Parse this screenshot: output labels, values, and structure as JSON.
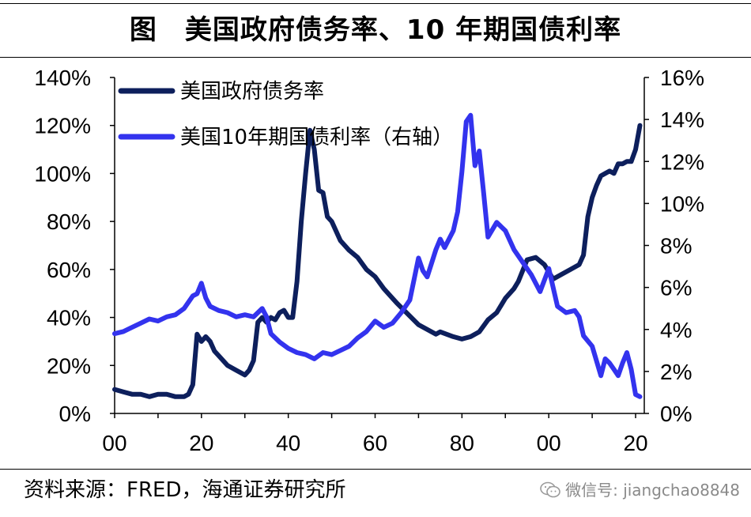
{
  "header": {
    "title": "图　美国政府债务率、10 年期国债利率"
  },
  "footer": {
    "source": "资料来源：FRED，海通证券研究所",
    "watermark": "微信号: jiangchao8848",
    "watermark_icon": "wechat-icon"
  },
  "chart_data": {
    "type": "line",
    "title": "图　美国政府债务率、10 年期国债利率",
    "xlabel": "",
    "ylabel": "",
    "y2label": "",
    "x_tick_labels": [
      "00",
      "20",
      "40",
      "60",
      "80",
      "00",
      "20"
    ],
    "x_tick_years": [
      1900,
      1920,
      1940,
      1960,
      1980,
      2000,
      2020
    ],
    "xlim": [
      1900,
      2022
    ],
    "ylim_left": [
      0,
      140
    ],
    "ylim_right": [
      0,
      16
    ],
    "y_left_ticks": [
      "0%",
      "20%",
      "40%",
      "60%",
      "80%",
      "100%",
      "120%",
      "140%"
    ],
    "y_right_ticks": [
      "0%",
      "2%",
      "4%",
      "6%",
      "8%",
      "10%",
      "12%",
      "14%",
      "16%"
    ],
    "legend_position": "top-left",
    "grid": false,
    "series": [
      {
        "name": "美国政府债务率",
        "axis": "left",
        "color": "#0d1f5c",
        "x": [
          1900,
          1902,
          1904,
          1906,
          1908,
          1910,
          1912,
          1914,
          1916,
          1917,
          1918,
          1919,
          1920,
          1921,
          1922,
          1923,
          1924,
          1926,
          1928,
          1930,
          1931,
          1932,
          1933,
          1934,
          1935,
          1936,
          1937,
          1938,
          1939,
          1940,
          1941,
          1942,
          1943,
          1944,
          1945,
          1946,
          1947,
          1948,
          1949,
          1950,
          1952,
          1954,
          1956,
          1958,
          1960,
          1962,
          1965,
          1970,
          1974,
          1975,
          1978,
          1980,
          1982,
          1984,
          1986,
          1988,
          1990,
          1992,
          1993,
          1995,
          1997,
          1999,
          2001,
          2003,
          2005,
          2007,
          2008,
          2009,
          2010,
          2011,
          2012,
          2013,
          2014,
          2015,
          2016,
          2017,
          2018,
          2019,
          2020,
          2021
        ],
        "values": [
          10,
          9,
          8,
          8,
          7,
          8,
          8,
          7,
          7,
          8,
          12,
          33,
          30,
          32,
          30,
          26,
          24,
          20,
          18,
          16,
          18,
          22,
          38,
          40,
          38,
          40,
          39,
          42,
          43,
          40,
          40,
          55,
          80,
          100,
          118,
          110,
          93,
          92,
          82,
          80,
          72,
          68,
          65,
          60,
          57,
          52,
          46,
          37,
          33,
          34,
          32,
          31,
          32,
          34,
          39,
          42,
          48,
          52,
          55,
          64,
          65,
          62,
          56,
          58,
          60,
          62,
          66,
          82,
          90,
          95,
          99,
          100,
          101,
          100,
          104,
          104,
          105,
          105,
          110,
          120
        ]
      },
      {
        "name": "美国10年期国债利率（右轴）",
        "axis": "right",
        "color": "#3333ee",
        "x": [
          1900,
          1902,
          1904,
          1906,
          1908,
          1910,
          1912,
          1914,
          1916,
          1918,
          1919,
          1920,
          1921,
          1922,
          1924,
          1926,
          1928,
          1930,
          1932,
          1934,
          1935,
          1936,
          1938,
          1940,
          1942,
          1944,
          1946,
          1948,
          1950,
          1952,
          1954,
          1956,
          1958,
          1960,
          1962,
          1964,
          1966,
          1968,
          1970,
          1971,
          1972,
          1974,
          1975,
          1976,
          1978,
          1979,
          1980,
          1981,
          1982,
          1983,
          1984,
          1985,
          1986,
          1988,
          1990,
          1992,
          1994,
          1996,
          1998,
          2000,
          2002,
          2004,
          2006,
          2007,
          2008,
          2010,
          2012,
          2013,
          2014,
          2015,
          2016,
          2017,
          2018,
          2019,
          2020,
          2021
        ],
        "values": [
          3.8,
          3.9,
          4.1,
          4.3,
          4.5,
          4.4,
          4.6,
          4.7,
          5.0,
          5.6,
          5.7,
          6.2,
          5.5,
          5.1,
          4.9,
          4.8,
          4.6,
          4.7,
          4.6,
          5.0,
          4.6,
          3.8,
          3.4,
          3.1,
          2.9,
          2.8,
          2.6,
          2.9,
          2.8,
          3.0,
          3.2,
          3.6,
          3.9,
          4.4,
          4.1,
          4.3,
          4.8,
          5.4,
          7.4,
          6.8,
          6.5,
          7.8,
          8.3,
          7.9,
          8.7,
          9.6,
          11.5,
          13.9,
          14.2,
          11.8,
          12.5,
          10.5,
          8.4,
          9.1,
          8.7,
          7.8,
          7.2,
          6.6,
          5.8,
          6.9,
          5.1,
          4.8,
          4.9,
          4.6,
          3.7,
          3.2,
          1.8,
          2.6,
          2.4,
          2.1,
          1.8,
          2.4,
          2.9,
          2.1,
          0.9,
          0.8
        ]
      }
    ]
  }
}
